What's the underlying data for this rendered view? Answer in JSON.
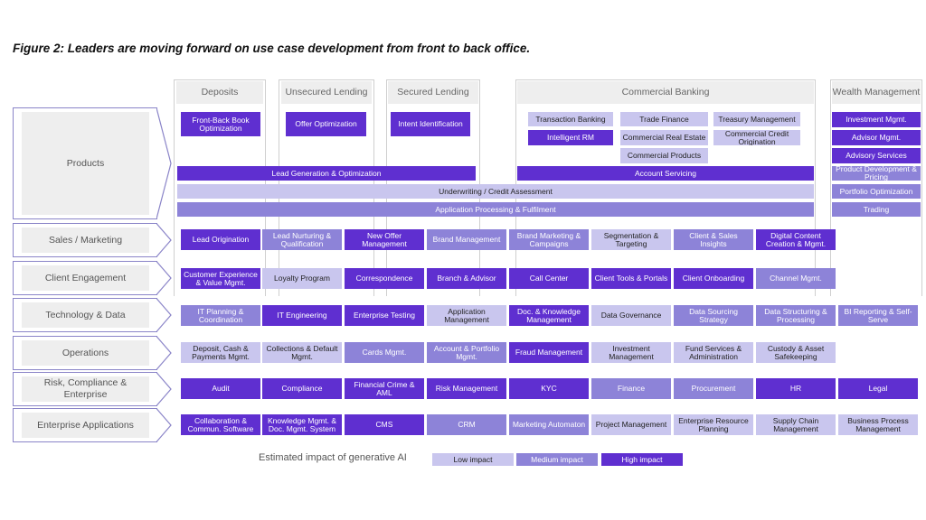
{
  "title": "Figure 2: Leaders are moving forward on use case development from front to back office.",
  "colors": {
    "low": "#c9c6ee",
    "medium": "#8d83d8",
    "high": "#5f2fd0",
    "frame": "#cfcfcf"
  },
  "columns": [
    {
      "id": "deposits",
      "label": "Deposits"
    },
    {
      "id": "unsecured",
      "label": "Unsecured Lending"
    },
    {
      "id": "secured",
      "label": "Secured Lending"
    },
    {
      "id": "commercial",
      "label": "Commercial Banking"
    },
    {
      "id": "wealth",
      "label": "Wealth Management"
    }
  ],
  "rows": [
    {
      "id": "products",
      "label": "Products"
    },
    {
      "id": "sales",
      "label": "Sales / Marketing"
    },
    {
      "id": "client",
      "label": "Client Engagement"
    },
    {
      "id": "tech",
      "label": "Technology & Data"
    },
    {
      "id": "ops",
      "label": "Operations"
    },
    {
      "id": "risk",
      "label": "Risk, Compliance & Enterprise"
    },
    {
      "id": "apps",
      "label": "Enterprise Applications"
    }
  ],
  "products": [
    {
      "label": "Front-Back Book Optimization",
      "impact": "high"
    },
    {
      "label": "Offer Optimization",
      "impact": "high"
    },
    {
      "label": "Intent Identification",
      "impact": "high"
    },
    {
      "label": "Transaction Banking",
      "impact": "low"
    },
    {
      "label": "Trade Finance",
      "impact": "low"
    },
    {
      "label": "Treasury Management",
      "impact": "low"
    },
    {
      "label": "Intelligent RM",
      "impact": "high"
    },
    {
      "label": "Commercial Real Estate",
      "impact": "low"
    },
    {
      "label": "Commercial Credit Origination",
      "impact": "low"
    },
    {
      "label": "Commercial Products",
      "impact": "low"
    },
    {
      "label": "Lead Generation & Optimization",
      "impact": "high"
    },
    {
      "label": "Account Servicing",
      "impact": "high"
    },
    {
      "label": "Underwriting / Credit Assessment",
      "impact": "low"
    },
    {
      "label": "Application Processing & Fulfilment",
      "impact": "medium"
    },
    {
      "label": "Investment Mgmt.",
      "impact": "high"
    },
    {
      "label": "Advisor Mgmt.",
      "impact": "high"
    },
    {
      "label": "Advisory Services",
      "impact": "high"
    },
    {
      "label": "Product Development & Pricing",
      "impact": "medium"
    },
    {
      "label": "Portfolio Optimization",
      "impact": "medium"
    },
    {
      "label": "Trading",
      "impact": "medium"
    }
  ],
  "sales": [
    {
      "label": "Lead Origination",
      "impact": "high"
    },
    {
      "label": "Lead Nurturing & Qualification",
      "impact": "medium"
    },
    {
      "label": "New Offer Management",
      "impact": "high"
    },
    {
      "label": "Brand Management",
      "impact": "medium"
    },
    {
      "label": "Brand Marketing & Campaigns",
      "impact": "medium"
    },
    {
      "label": "Segmentation & Targeting",
      "impact": "low"
    },
    {
      "label": "Client & Sales Insights",
      "impact": "medium"
    },
    {
      "label": "Digital Content Creation & Mgmt.",
      "impact": "high"
    }
  ],
  "client": [
    {
      "label": "Customer Experience & Value Mgmt.",
      "impact": "high"
    },
    {
      "label": "Loyalty Program",
      "impact": "low"
    },
    {
      "label": "Correspondence",
      "impact": "high"
    },
    {
      "label": "Branch & Advisor",
      "impact": "high"
    },
    {
      "label": "Call Center",
      "impact": "high"
    },
    {
      "label": "Client Tools & Portals",
      "impact": "high"
    },
    {
      "label": "Client Onboarding",
      "impact": "high"
    },
    {
      "label": "Channel Mgmt.",
      "impact": "medium"
    }
  ],
  "tech": [
    {
      "label": "IT Planning & Coordination",
      "impact": "medium"
    },
    {
      "label": "IT Engineering",
      "impact": "high"
    },
    {
      "label": "Enterprise Testing",
      "impact": "high"
    },
    {
      "label": "Application Management",
      "impact": "low"
    },
    {
      "label": "Doc. & Knowledge Management",
      "impact": "high"
    },
    {
      "label": "Data Governance",
      "impact": "low"
    },
    {
      "label": "Data Sourcing Strategy",
      "impact": "medium"
    },
    {
      "label": "Data Structuring & Processing",
      "impact": "medium"
    },
    {
      "label": "BI Reporting & Self-Serve",
      "impact": "medium"
    }
  ],
  "ops": [
    {
      "label": "Deposit, Cash & Payments Mgmt.",
      "impact": "low"
    },
    {
      "label": "Collections & Default Mgmt.",
      "impact": "low"
    },
    {
      "label": "Cards Mgmt.",
      "impact": "medium"
    },
    {
      "label": "Account & Portfolio Mgmt.",
      "impact": "medium"
    },
    {
      "label": "Fraud Management",
      "impact": "high"
    },
    {
      "label": "Investment Management",
      "impact": "low"
    },
    {
      "label": "Fund Services & Administration",
      "impact": "low"
    },
    {
      "label": "Custody & Asset Safekeeping",
      "impact": "low"
    }
  ],
  "risk": [
    {
      "label": "Audit",
      "impact": "high"
    },
    {
      "label": "Compliance",
      "impact": "high"
    },
    {
      "label": "Financial Crime & AML",
      "impact": "high"
    },
    {
      "label": "Risk Management",
      "impact": "high"
    },
    {
      "label": "KYC",
      "impact": "high"
    },
    {
      "label": "Finance",
      "impact": "medium"
    },
    {
      "label": "Procurement",
      "impact": "medium"
    },
    {
      "label": "HR",
      "impact": "high"
    },
    {
      "label": "Legal",
      "impact": "high"
    }
  ],
  "apps": [
    {
      "label": "Collaboration & Commun. Software",
      "impact": "high"
    },
    {
      "label": "Knowledge Mgmt. & Doc. Mgmt. System",
      "impact": "high"
    },
    {
      "label": "CMS",
      "impact": "high"
    },
    {
      "label": "CRM",
      "impact": "medium"
    },
    {
      "label": "Marketing Automaton",
      "impact": "medium"
    },
    {
      "label": "Project Management",
      "impact": "low"
    },
    {
      "label": "Enterprise Resource Planning",
      "impact": "low"
    },
    {
      "label": "Supply Chain Management",
      "impact": "low"
    },
    {
      "label": "Business Process Management",
      "impact": "low"
    }
  ],
  "legend": {
    "title": "Estimated impact of generative AI",
    "items": [
      {
        "label": "Low impact",
        "impact": "low"
      },
      {
        "label": "Medium impact",
        "impact": "medium"
      },
      {
        "label": "High impact",
        "impact": "high"
      }
    ]
  }
}
